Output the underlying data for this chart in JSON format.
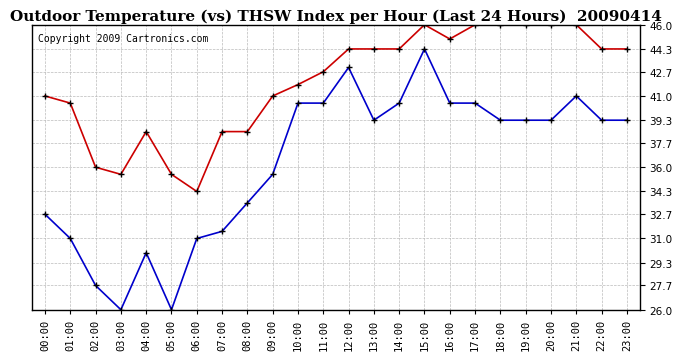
{
  "title": "Outdoor Temperature (vs) THSW Index per Hour (Last 24 Hours)  20090414",
  "copyright": "Copyright 2009 Cartronics.com",
  "x_labels": [
    "00:00",
    "01:00",
    "02:00",
    "03:00",
    "04:00",
    "05:00",
    "06:00",
    "07:00",
    "08:00",
    "09:00",
    "10:00",
    "11:00",
    "12:00",
    "13:00",
    "14:00",
    "15:00",
    "16:00",
    "17:00",
    "18:00",
    "19:00",
    "20:00",
    "21:00",
    "22:00",
    "23:00"
  ],
  "y_ticks": [
    26.0,
    27.7,
    29.3,
    31.0,
    32.7,
    34.3,
    36.0,
    37.7,
    39.3,
    41.0,
    42.7,
    44.3,
    46.0
  ],
  "y_min": 26.0,
  "y_max": 46.0,
  "temp_data": [
    41.0,
    40.5,
    36.0,
    35.5,
    38.5,
    35.5,
    34.3,
    38.5,
    38.5,
    41.0,
    41.8,
    42.7,
    44.3,
    44.3,
    44.3,
    46.0,
    45.0,
    46.0,
    46.0,
    46.0,
    46.0,
    46.0,
    44.3,
    44.3
  ],
  "thsw_data": [
    32.7,
    31.0,
    27.7,
    26.0,
    30.0,
    26.0,
    31.0,
    31.5,
    33.5,
    35.5,
    40.5,
    40.5,
    43.0,
    39.3,
    40.5,
    44.3,
    40.5,
    40.5,
    39.3,
    39.3,
    39.3,
    41.0,
    39.3,
    39.3
  ],
  "temp_color": "#cc0000",
  "thsw_color": "#0000cc",
  "bg_color": "#ffffff",
  "grid_color": "#bbbbbb",
  "title_fontsize": 11,
  "tick_fontsize": 7.5,
  "copyright_fontsize": 7
}
